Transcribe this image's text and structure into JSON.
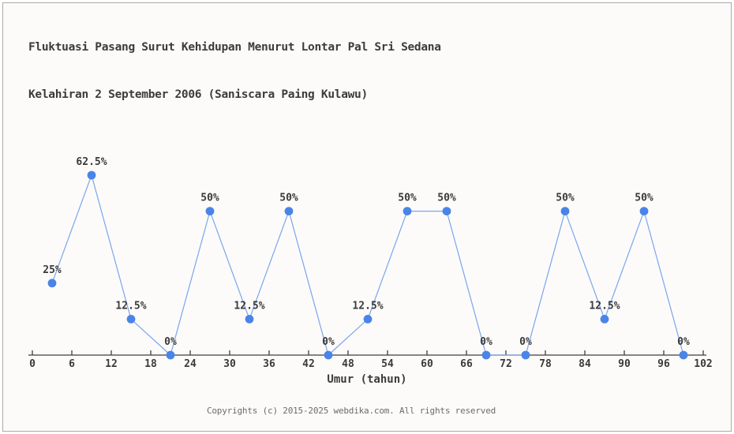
{
  "header": {
    "title_line1": "Fluktuasi Pasang Surut Kehidupan Menurut Lontar Pal Sri Sedana",
    "title_line2": "Kelahiran 2 September 2006 (Saniscara Paing Kulawu)"
  },
  "footer": {
    "copyright": "Copyrights (c) 2015-2025 webdika.com. All rights reserved"
  },
  "chart_data": {
    "type": "line",
    "title": "Fluktuasi Pasang Surut Kehidupan Menurut Lontar Pal Sri Sedana — Kelahiran 2 September 2006 (Saniscara Paing Kulawu)",
    "xlabel": "Umur (tahun)",
    "ylabel": "",
    "x": [
      3,
      9,
      15,
      21,
      27,
      33,
      39,
      45,
      51,
      57,
      63,
      69,
      75,
      81,
      87,
      93,
      99
    ],
    "values": [
      25,
      62.5,
      12.5,
      0,
      50,
      12.5,
      50,
      0,
      12.5,
      50,
      50,
      0,
      0,
      50,
      12.5,
      50,
      0
    ],
    "point_labels": [
      "25%",
      "62.5%",
      "12.5%",
      "0%",
      "50%",
      "12.5%",
      "50%",
      "0%",
      "12.5%",
      "50%",
      "50%",
      "0%",
      "0%",
      "50%",
      "12.5%",
      "50%",
      "0%"
    ],
    "x_ticks": [
      0,
      6,
      12,
      18,
      24,
      30,
      36,
      42,
      48,
      54,
      60,
      66,
      72,
      78,
      84,
      90,
      96,
      102
    ],
    "xlim": [
      0,
      102
    ],
    "ylim": [
      0,
      70
    ],
    "grid": false,
    "legend": "none",
    "colors": {
      "marker": "#4a84e8",
      "line": "#7aa5ee",
      "axis": "#3f3f3f",
      "label": "#3a3a3a"
    }
  }
}
